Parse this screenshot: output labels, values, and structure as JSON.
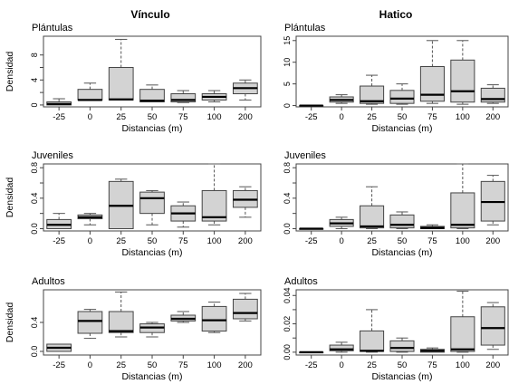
{
  "column_titles": [
    "Vínculo",
    "Hatico"
  ],
  "colors": {
    "box_fill": "#d3d3d3",
    "stroke": "#000000",
    "frame": "#444444",
    "whisker": "#555555"
  },
  "chart_data": [
    {
      "type": "box",
      "column": "Vínculo",
      "panel_label": "Plántulas",
      "xlabel": "Distancias (m)",
      "ylabel": "Densidad",
      "categories": [
        "-25",
        "0",
        "25",
        "50",
        "75",
        "100",
        "200"
      ],
      "ylim": [
        -0.3,
        11
      ],
      "yticks": [
        0,
        2,
        4,
        6,
        8
      ],
      "ytick_labels": [
        "0",
        "",
        "4",
        "",
        "8"
      ],
      "boxes": [
        {
          "min": 0,
          "q1": 0,
          "median": 0.15,
          "q3": 0.5,
          "max": 1.0
        },
        {
          "min": 0.8,
          "q1": 0.8,
          "median": 0.8,
          "q3": 2.5,
          "max": 3.5
        },
        {
          "min": 0.8,
          "q1": 0.8,
          "median": 0.9,
          "q3": 6.0,
          "max": 10.5
        },
        {
          "min": 0.5,
          "q1": 0.5,
          "median": 0.7,
          "q3": 2.5,
          "max": 3.2
        },
        {
          "min": 0.4,
          "q1": 0.5,
          "median": 0.8,
          "q3": 1.8,
          "max": 2.3
        },
        {
          "min": 0.5,
          "q1": 0.8,
          "median": 1.3,
          "q3": 1.8,
          "max": 2.3
        },
        {
          "min": 0.8,
          "q1": 1.8,
          "median": 2.7,
          "q3": 3.5,
          "max": 4.0
        }
      ]
    },
    {
      "type": "box",
      "column": "Hatico",
      "panel_label": "Plántulas",
      "xlabel": "Distancias (m)",
      "ylabel": "",
      "categories": [
        "-25",
        "0",
        "25",
        "50",
        "75",
        "100",
        "200"
      ],
      "ylim": [
        -0.3,
        16
      ],
      "yticks": [
        0,
        5,
        10,
        15
      ],
      "ytick_labels": [
        "0",
        "5",
        "10",
        "15"
      ],
      "boxes": [
        {
          "min": 0,
          "q1": 0,
          "median": 0,
          "q3": 0,
          "max": 0
        },
        {
          "min": 0.5,
          "q1": 0.8,
          "median": 1.3,
          "q3": 2.0,
          "max": 2.5
        },
        {
          "min": 0.3,
          "q1": 0.5,
          "median": 1.0,
          "q3": 4.5,
          "max": 7.0
        },
        {
          "min": 0.3,
          "q1": 0.5,
          "median": 1.6,
          "q3": 3.5,
          "max": 5.0
        },
        {
          "min": 0.5,
          "q1": 1.0,
          "median": 2.5,
          "q3": 9.0,
          "max": 15.0
        },
        {
          "min": 0.3,
          "q1": 0.8,
          "median": 3.3,
          "q3": 10.5,
          "max": 15.0
        },
        {
          "min": 0.5,
          "q1": 0.8,
          "median": 1.5,
          "q3": 4.0,
          "max": 4.8
        }
      ]
    },
    {
      "type": "box",
      "column": "Vínculo",
      "panel_label": "Juveniles",
      "xlabel": "Distancias (m)",
      "ylabel": "Densidad",
      "categories": [
        "-25",
        "0",
        "25",
        "50",
        "75",
        "100",
        "200"
      ],
      "ylim": [
        -0.03,
        0.85
      ],
      "yticks": [
        0,
        0.2,
        0.4,
        0.6,
        0.8
      ],
      "ytick_labels": [
        "0.0",
        "",
        "0.4",
        "",
        "0.8"
      ],
      "boxes": [
        {
          "min": 0,
          "q1": 0,
          "median": 0.05,
          "q3": 0.12,
          "max": 0.2
        },
        {
          "min": 0.05,
          "q1": 0.13,
          "median": 0.15,
          "q3": 0.18,
          "max": 0.2
        },
        {
          "min": 0,
          "q1": 0,
          "median": 0.3,
          "q3": 0.62,
          "max": 0.65
        },
        {
          "min": 0.05,
          "q1": 0.2,
          "median": 0.4,
          "q3": 0.48,
          "max": 0.5
        },
        {
          "min": 0.02,
          "q1": 0.1,
          "median": 0.2,
          "q3": 0.3,
          "max": 0.35
        },
        {
          "min": 0.05,
          "q1": 0.1,
          "median": 0.15,
          "q3": 0.5,
          "max": 0.85
        },
        {
          "min": 0.15,
          "q1": 0.28,
          "median": 0.38,
          "q3": 0.5,
          "max": 0.55
        }
      ]
    },
    {
      "type": "box",
      "column": "Hatico",
      "panel_label": "Juveniles",
      "xlabel": "Distancias (m)",
      "ylabel": "",
      "categories": [
        "-25",
        "0",
        "25",
        "50",
        "75",
        "100",
        "200"
      ],
      "ylim": [
        -0.03,
        0.85
      ],
      "yticks": [
        0,
        0.2,
        0.4,
        0.6,
        0.8
      ],
      "ytick_labels": [
        "0.0",
        "",
        "0.4",
        "",
        "0.8"
      ],
      "boxes": [
        {
          "min": 0,
          "q1": 0,
          "median": 0,
          "q3": 0,
          "max": 0
        },
        {
          "min": 0,
          "q1": 0.03,
          "median": 0.07,
          "q3": 0.12,
          "max": 0.15
        },
        {
          "min": 0,
          "q1": 0.01,
          "median": 0.03,
          "q3": 0.3,
          "max": 0.55
        },
        {
          "min": 0,
          "q1": 0.01,
          "median": 0.05,
          "q3": 0.18,
          "max": 0.22
        },
        {
          "min": 0,
          "q1": 0,
          "median": 0.01,
          "q3": 0.03,
          "max": 0.05
        },
        {
          "min": 0,
          "q1": 0.01,
          "median": 0.05,
          "q3": 0.47,
          "max": 0.85
        },
        {
          "min": 0.05,
          "q1": 0.1,
          "median": 0.35,
          "q3": 0.62,
          "max": 0.7
        }
      ]
    },
    {
      "type": "box",
      "column": "Vínculo",
      "panel_label": "Adultos",
      "xlabel": "Distancias (m)",
      "ylabel": "Densidad",
      "categories": [
        "-25",
        "0",
        "25",
        "50",
        "75",
        "100",
        "200"
      ],
      "ylim": [
        -0.05,
        0.85
      ],
      "yticks": [
        0,
        0.4
      ],
      "ytick_labels": [
        "0.0",
        "0.4"
      ],
      "boxes": [
        {
          "min": 0,
          "q1": 0,
          "median": 0.05,
          "q3": 0.1,
          "max": 0.1
        },
        {
          "min": 0.18,
          "q1": 0.25,
          "median": 0.42,
          "q3": 0.55,
          "max": 0.58
        },
        {
          "min": 0.2,
          "q1": 0.26,
          "median": 0.28,
          "q3": 0.55,
          "max": 0.82
        },
        {
          "min": 0.2,
          "q1": 0.26,
          "median": 0.33,
          "q3": 0.38,
          "max": 0.4
        },
        {
          "min": 0.4,
          "q1": 0.42,
          "median": 0.45,
          "q3": 0.5,
          "max": 0.55
        },
        {
          "min": 0.26,
          "q1": 0.28,
          "median": 0.43,
          "q3": 0.62,
          "max": 0.68
        },
        {
          "min": 0.42,
          "q1": 0.45,
          "median": 0.53,
          "q3": 0.72,
          "max": 0.8
        }
      ]
    },
    {
      "type": "box",
      "column": "Hatico",
      "panel_label": "Adultos",
      "xlabel": "Distancias (m)",
      "ylabel": "",
      "categories": [
        "-25",
        "0",
        "25",
        "50",
        "75",
        "100",
        "200"
      ],
      "ylim": [
        -0.002,
        0.044
      ],
      "yticks": [
        0,
        0.01,
        0.02,
        0.03,
        0.04
      ],
      "ytick_labels": [
        "0.00",
        "",
        "0.02",
        "",
        "0.04"
      ],
      "boxes": [
        {
          "min": 0,
          "q1": 0,
          "median": 0,
          "q3": 0,
          "max": 0
        },
        {
          "min": 0,
          "q1": 0.001,
          "median": 0.002,
          "q3": 0.005,
          "max": 0.007
        },
        {
          "min": 0,
          "q1": 0.0005,
          "median": 0.001,
          "q3": 0.015,
          "max": 0.03
        },
        {
          "min": 0,
          "q1": 0.0005,
          "median": 0.003,
          "q3": 0.008,
          "max": 0.01
        },
        {
          "min": 0,
          "q1": 0,
          "median": 0.001,
          "q3": 0.002,
          "max": 0.003
        },
        {
          "min": 0,
          "q1": 0.0005,
          "median": 0.002,
          "q3": 0.025,
          "max": 0.043
        },
        {
          "min": 0.002,
          "q1": 0.005,
          "median": 0.017,
          "q3": 0.032,
          "max": 0.035
        }
      ]
    }
  ]
}
